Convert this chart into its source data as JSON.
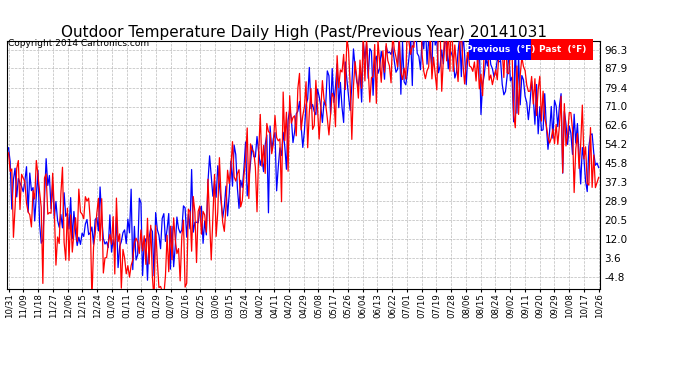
{
  "title": "Outdoor Temperature Daily High (Past/Previous Year) 20141031",
  "copyright": "Copyright 2014 Cartronics.com",
  "legend_labels": [
    "Previous  (°F)",
    "Past  (°F)"
  ],
  "legend_colors": [
    "blue",
    "red"
  ],
  "y_ticks": [
    -4.8,
    3.6,
    12.0,
    20.5,
    28.9,
    37.3,
    45.8,
    54.2,
    62.6,
    71.0,
    79.4,
    87.9,
    96.3
  ],
  "background_color": "#ffffff",
  "plot_bg_color": "#ffffff",
  "grid_color": "#aaaaaa",
  "title_fontsize": 11,
  "x_tick_labels": [
    "10/31",
    "11/09",
    "11/18",
    "11/27",
    "12/06",
    "12/15",
    "12/24",
    "01/02",
    "01/11",
    "01/20",
    "01/29",
    "02/07",
    "02/16",
    "02/25",
    "03/06",
    "03/15",
    "03/24",
    "04/02",
    "04/11",
    "04/20",
    "04/29",
    "05/08",
    "05/17",
    "05/26",
    "06/04",
    "06/13",
    "06/22",
    "07/01",
    "07/10",
    "07/19",
    "07/28",
    "08/06",
    "08/15",
    "08/24",
    "09/02",
    "09/11",
    "09/20",
    "09/29",
    "10/08",
    "10/17",
    "10/26"
  ],
  "ylim_min": -10,
  "ylim_max": 100,
  "n_days": 362,
  "seed_blue": 10,
  "seed_red": 20
}
